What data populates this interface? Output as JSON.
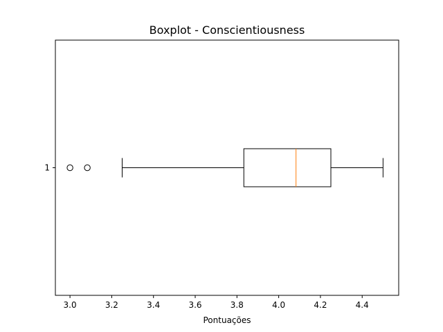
{
  "chart_data": {
    "type": "boxplot",
    "orientation": "horizontal",
    "title": "Boxplot - Conscientiousness",
    "xlabel": "Pontuações",
    "ylabel": "",
    "xlim": [
      2.93,
      4.575
    ],
    "ylim": [
      0.5,
      1.5
    ],
    "grid": false,
    "x_ticks": [
      3.0,
      3.2,
      3.4,
      3.6,
      3.8,
      4.0,
      4.2,
      4.4
    ],
    "x_tick_labels": [
      "3.0",
      "3.2",
      "3.4",
      "3.6",
      "3.8",
      "4.0",
      "4.2",
      "4.4"
    ],
    "y_ticks": [
      1
    ],
    "y_tick_labels": [
      "1"
    ],
    "boxes": [
      {
        "position": 1,
        "whisker_low": 3.25,
        "q1": 3.833,
        "median": 4.083,
        "q3": 4.25,
        "whisker_high": 4.5,
        "outliers": [
          3.0,
          3.083
        ]
      }
    ],
    "colors": {
      "box": "#000000",
      "median": "#ff7f0e",
      "outlier": "#000000"
    }
  }
}
